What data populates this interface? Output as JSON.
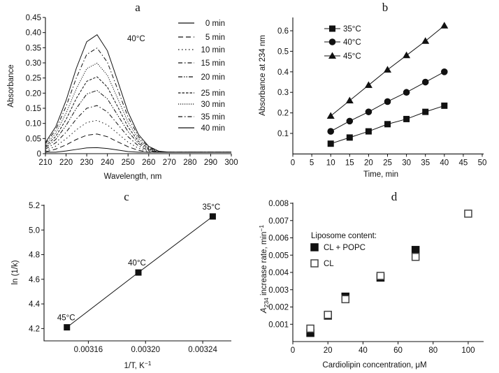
{
  "chart_data": [
    {
      "panel": "a",
      "type": "line",
      "xlabel": "Wavelength, nm",
      "ylabel": "Absorbance",
      "annotation": "40°C",
      "xlim": [
        210,
        300
      ],
      "ylim": [
        0,
        0.45
      ],
      "xticks": [
        "210",
        "220",
        "230",
        "240",
        "250",
        "260",
        "270",
        "280",
        "290",
        "300"
      ],
      "yticks": [
        "0",
        "0.05",
        "0.10",
        "0.15",
        "0.20",
        "0.25",
        "0.30",
        "0.35",
        "0.40",
        "0.45"
      ],
      "legend": "top-right",
      "x": [
        210,
        215,
        220,
        225,
        230,
        235,
        240,
        245,
        250,
        255,
        260,
        265,
        270,
        275,
        280,
        285,
        290,
        295,
        300
      ],
      "series": [
        {
          "name": "0 min",
          "style": "solid",
          "values": [
            0.005,
            0.005,
            0.009,
            0.014,
            0.019,
            0.02,
            0.017,
            0.012,
            0.007,
            0.005,
            0.005,
            0.005,
            0.005,
            0.005,
            0.005,
            0.005,
            0.005,
            0.005,
            0.005
          ]
        },
        {
          "name": "5 min",
          "style": "longdash",
          "values": [
            0.006,
            0.015,
            0.029,
            0.047,
            0.061,
            0.065,
            0.056,
            0.039,
            0.023,
            0.011,
            0.005,
            0.005,
            0.005,
            0.005,
            0.005,
            0.005,
            0.005,
            0.005,
            0.005
          ]
        },
        {
          "name": "10 min",
          "style": "dot",
          "values": [
            0.01,
            0.025,
            0.049,
            0.079,
            0.103,
            0.11,
            0.095,
            0.067,
            0.038,
            0.018,
            0.007,
            0.005,
            0.005,
            0.005,
            0.005,
            0.005,
            0.005,
            0.005,
            0.005
          ]
        },
        {
          "name": "15 min",
          "style": "dashdot",
          "values": [
            0.015,
            0.036,
            0.071,
            0.115,
            0.15,
            0.159,
            0.138,
            0.097,
            0.056,
            0.026,
            0.01,
            0.005,
            0.005,
            0.005,
            0.005,
            0.005,
            0.005,
            0.005,
            0.005
          ]
        },
        {
          "name": "20 min",
          "style": "dashdotdot",
          "values": [
            0.02,
            0.047,
            0.093,
            0.15,
            0.197,
            0.209,
            0.181,
            0.127,
            0.073,
            0.034,
            0.013,
            0.005,
            0.005,
            0.005,
            0.005,
            0.005,
            0.005,
            0.005,
            0.005
          ]
        },
        {
          "name": "25 min",
          "style": "shortdash",
          "values": [
            0.024,
            0.057,
            0.113,
            0.183,
            0.239,
            0.254,
            0.22,
            0.155,
            0.088,
            0.041,
            0.016,
            0.005,
            0.005,
            0.005,
            0.005,
            0.005,
            0.005,
            0.005,
            0.005
          ]
        },
        {
          "name": "30 min",
          "style": "densedot",
          "values": [
            0.028,
            0.068,
            0.134,
            0.215,
            0.281,
            0.299,
            0.259,
            0.182,
            0.104,
            0.049,
            0.018,
            0.006,
            0.005,
            0.005,
            0.005,
            0.005,
            0.005,
            0.005,
            0.005
          ]
        },
        {
          "name": "35 min",
          "style": "dashdot",
          "values": [
            0.033,
            0.079,
            0.156,
            0.251,
            0.328,
            0.349,
            0.302,
            0.212,
            0.121,
            0.057,
            0.021,
            0.007,
            0.005,
            0.005,
            0.005,
            0.005,
            0.005,
            0.005,
            0.005
          ]
        },
        {
          "name": "40 min",
          "style": "solid",
          "values": [
            0.037,
            0.089,
            0.176,
            0.283,
            0.37,
            0.393,
            0.34,
            0.24,
            0.137,
            0.064,
            0.024,
            0.008,
            0.005,
            0.005,
            0.005,
            0.005,
            0.005,
            0.005,
            0.005
          ]
        }
      ]
    },
    {
      "panel": "b",
      "type": "line",
      "xlabel": "Time, min",
      "ylabel": "Absorbance at 234 nm",
      "xlim": [
        0,
        50
      ],
      "ylim": [
        0,
        0.66
      ],
      "xticks": [
        "0",
        "5",
        "10",
        "15",
        "20",
        "25",
        "30",
        "35",
        "40",
        "45",
        "50"
      ],
      "yticks": [
        "0.1",
        "0.2",
        "0.3",
        "0.4",
        "0.5",
        "0.6"
      ],
      "legend": "top-left",
      "x": [
        10,
        15,
        20,
        25,
        30,
        35,
        40
      ],
      "series": [
        {
          "name": "35°C",
          "marker": "square",
          "values": [
            0.05,
            0.08,
            0.11,
            0.145,
            0.17,
            0.205,
            0.235
          ]
        },
        {
          "name": "40°C",
          "marker": "circle",
          "values": [
            0.11,
            0.16,
            0.205,
            0.255,
            0.3,
            0.35,
            0.4
          ]
        },
        {
          "name": "45°C",
          "marker": "triangle",
          "values": [
            0.185,
            0.26,
            0.335,
            0.41,
            0.48,
            0.55,
            0.625
          ]
        }
      ]
    },
    {
      "panel": "c",
      "type": "line",
      "xlabel": "1/T, K",
      "xlabel_sup": "−1",
      "ylabel": "ln (1/k)",
      "xlim": [
        0.003129,
        0.00326
      ],
      "ylim": [
        4.1,
        5.2
      ],
      "xticks": [
        "0.00316",
        "0.00320",
        "0.00324"
      ],
      "yticks": [
        "4.2",
        "4.4",
        "4.6",
        "4.8",
        "5.0",
        "5.2"
      ],
      "points": [
        {
          "label": "45°C",
          "x": 0.003145,
          "y": 4.21
        },
        {
          "label": "40°C",
          "x": 0.003195,
          "y": 4.655
        },
        {
          "label": "35°C",
          "x": 0.003247,
          "y": 5.11
        }
      ]
    },
    {
      "panel": "d",
      "type": "scatter",
      "xlabel": "Cardiolipin concentration, μM",
      "ylabel_italic": "A",
      "ylabel_sub": "234",
      "ylabel": " increase rate, min",
      "ylabel_sup": "−1",
      "xlim": [
        0,
        109
      ],
      "ylim": [
        0,
        0.008
      ],
      "xticks": [
        "0",
        "20",
        "40",
        "60",
        "80",
        "100"
      ],
      "yticks": [
        "0.001",
        "0.002",
        "0.003",
        "0.004",
        "0.005",
        "0.006",
        "0.007",
        "0.008"
      ],
      "legend_title": "Liposome content:",
      "legend": "left",
      "series": [
        {
          "name": "CL + POPC",
          "marker": "filled-square",
          "x": [
            10,
            20,
            30,
            50,
            70
          ],
          "values": [
            0.0005,
            0.0015,
            0.0026,
            0.0037,
            0.0053
          ]
        },
        {
          "name": "CL",
          "marker": "open-square",
          "x": [
            10,
            20,
            30,
            50,
            70,
            100
          ],
          "values": [
            0.00075,
            0.00155,
            0.00245,
            0.0038,
            0.0049,
            0.0074
          ]
        }
      ]
    }
  ]
}
